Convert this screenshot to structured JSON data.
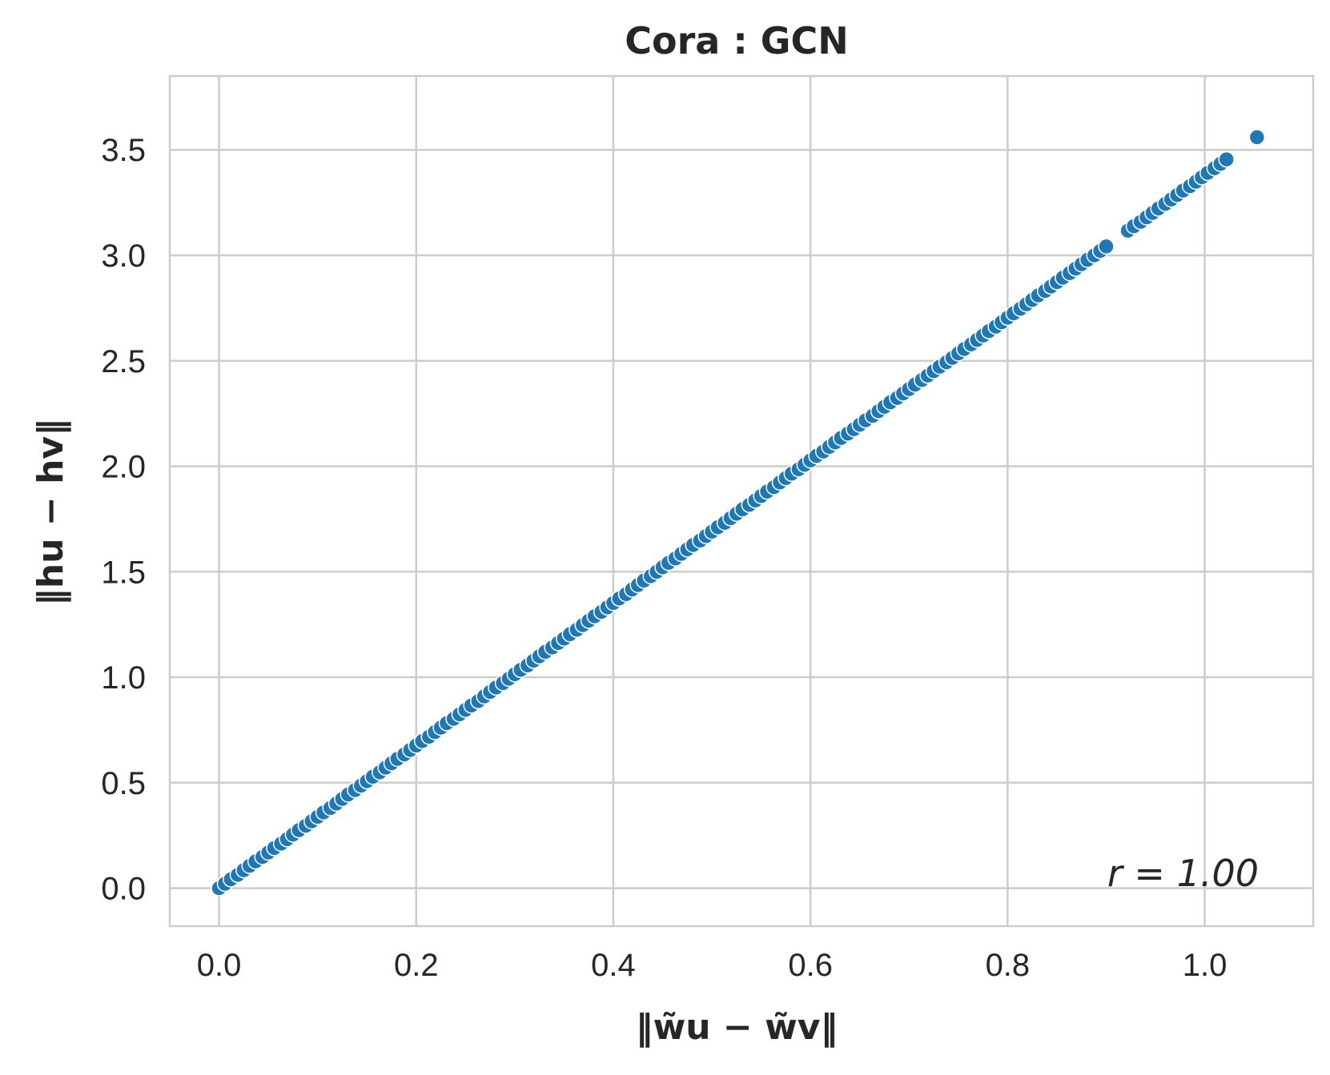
{
  "chart_data": {
    "type": "scatter",
    "title": "Cora : GCN",
    "xlabel": "‖w̃u − w̃v‖",
    "ylabel": "‖hu − hv‖",
    "xlim": [
      -0.05,
      1.11
    ],
    "ylim": [
      -0.18,
      3.85
    ],
    "xticks": [
      "0.0",
      "0.2",
      "0.4",
      "0.6",
      "0.8",
      "1.0"
    ],
    "xtick_values": [
      0.0,
      0.2,
      0.4,
      0.6,
      0.8,
      1.0
    ],
    "yticks": [
      "0.0",
      "0.5",
      "1.0",
      "1.5",
      "2.0",
      "2.5",
      "3.0",
      "3.5"
    ],
    "ytick_values": [
      0.0,
      0.5,
      1.0,
      1.5,
      2.0,
      2.5,
      3.0,
      3.5
    ],
    "grid": true,
    "annotation": "r = 1.00",
    "marker_color": "#1f77b4",
    "marker_edge_color": "#ffffff",
    "series": [
      {
        "x": [
          0.0,
          0.006,
          0.012,
          0.019,
          0.025,
          0.031,
          0.037,
          0.044,
          0.05,
          0.056,
          0.063,
          0.069,
          0.075,
          0.081,
          0.088,
          0.094,
          0.1,
          0.106,
          0.113,
          0.119,
          0.125,
          0.131,
          0.138,
          0.144,
          0.15,
          0.156,
          0.163,
          0.169,
          0.175,
          0.181,
          0.188,
          0.194,
          0.2,
          0.206,
          0.213,
          0.219,
          0.225,
          0.231,
          0.238,
          0.244,
          0.25,
          0.256,
          0.263,
          0.269,
          0.275,
          0.281,
          0.288,
          0.294,
          0.3,
          0.306,
          0.313,
          0.319,
          0.325,
          0.331,
          0.338,
          0.344,
          0.35,
          0.356,
          0.363,
          0.369,
          0.375,
          0.381,
          0.388,
          0.394,
          0.4,
          0.406,
          0.413,
          0.419,
          0.425,
          0.431,
          0.438,
          0.444,
          0.45,
          0.456,
          0.463,
          0.469,
          0.475,
          0.481,
          0.488,
          0.494,
          0.5,
          0.506,
          0.513,
          0.519,
          0.525,
          0.531,
          0.538,
          0.544,
          0.55,
          0.556,
          0.563,
          0.569,
          0.575,
          0.581,
          0.588,
          0.594,
          0.6,
          0.606,
          0.613,
          0.619,
          0.625,
          0.631,
          0.638,
          0.644,
          0.65,
          0.656,
          0.663,
          0.669,
          0.675,
          0.681,
          0.688,
          0.694,
          0.7,
          0.706,
          0.713,
          0.719,
          0.725,
          0.731,
          0.738,
          0.744,
          0.75,
          0.756,
          0.763,
          0.769,
          0.775,
          0.781,
          0.788,
          0.794,
          0.8,
          0.806,
          0.813,
          0.819,
          0.825,
          0.831,
          0.838,
          0.844,
          0.85,
          0.856,
          0.863,
          0.869,
          0.875,
          0.881,
          0.888,
          0.894,
          0.9,
          0.922,
          0.928,
          0.935,
          0.941,
          0.947,
          0.953,
          0.96,
          0.966,
          0.972,
          0.978,
          0.985,
          0.991,
          0.997,
          1.003,
          1.01,
          1.016,
          1.022,
          1.053
        ],
        "y": [
          0.0,
          0.021,
          0.042,
          0.063,
          0.085,
          0.106,
          0.127,
          0.148,
          0.169,
          0.19,
          0.211,
          0.232,
          0.254,
          0.275,
          0.296,
          0.317,
          0.338,
          0.359,
          0.38,
          0.401,
          0.423,
          0.444,
          0.465,
          0.486,
          0.507,
          0.528,
          0.549,
          0.571,
          0.592,
          0.613,
          0.634,
          0.655,
          0.676,
          0.697,
          0.718,
          0.74,
          0.761,
          0.782,
          0.803,
          0.824,
          0.845,
          0.866,
          0.887,
          0.909,
          0.93,
          0.951,
          0.972,
          0.993,
          1.014,
          1.035,
          1.056,
          1.078,
          1.099,
          1.12,
          1.141,
          1.162,
          1.183,
          1.204,
          1.225,
          1.247,
          1.268,
          1.289,
          1.31,
          1.331,
          1.352,
          1.373,
          1.394,
          1.416,
          1.437,
          1.458,
          1.479,
          1.5,
          1.521,
          1.542,
          1.563,
          1.585,
          1.606,
          1.627,
          1.648,
          1.669,
          1.69,
          1.711,
          1.732,
          1.754,
          1.775,
          1.796,
          1.817,
          1.838,
          1.859,
          1.88,
          1.901,
          1.923,
          1.944,
          1.965,
          1.986,
          2.007,
          2.028,
          2.049,
          2.07,
          2.092,
          2.113,
          2.134,
          2.155,
          2.176,
          2.197,
          2.218,
          2.239,
          2.261,
          2.282,
          2.303,
          2.324,
          2.345,
          2.366,
          2.387,
          2.409,
          2.43,
          2.451,
          2.472,
          2.493,
          2.514,
          2.535,
          2.556,
          2.578,
          2.599,
          2.62,
          2.641,
          2.662,
          2.683,
          2.704,
          2.725,
          2.747,
          2.768,
          2.789,
          2.81,
          2.831,
          2.852,
          2.873,
          2.894,
          2.916,
          2.937,
          2.958,
          2.979,
          3.0,
          3.021,
          3.042,
          3.117,
          3.138,
          3.159,
          3.18,
          3.201,
          3.222,
          3.244,
          3.265,
          3.286,
          3.307,
          3.328,
          3.349,
          3.37,
          3.391,
          3.413,
          3.434,
          3.455,
          3.56
        ]
      }
    ]
  }
}
